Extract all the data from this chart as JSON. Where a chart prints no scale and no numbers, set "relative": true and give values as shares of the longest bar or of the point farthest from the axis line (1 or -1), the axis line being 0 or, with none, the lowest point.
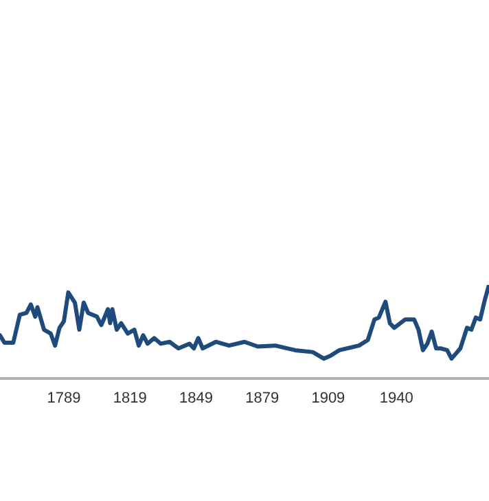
{
  "chart_data": {
    "type": "line",
    "relative": true,
    "x": [
      1760,
      1762,
      1766,
      1769,
      1772,
      1774,
      1776,
      1777,
      1780,
      1783,
      1785,
      1787,
      1789,
      1791,
      1794,
      1796,
      1798,
      1800,
      1804,
      1806,
      1809,
      1810,
      1811,
      1813,
      1815,
      1818,
      1821,
      1823,
      1825,
      1827,
      1830,
      1833,
      1837,
      1841,
      1846,
      1848,
      1850,
      1852,
      1858,
      1864,
      1871,
      1877,
      1885,
      1894,
      1902,
      1907,
      1910,
      1914,
      1923,
      1927,
      1930,
      1932,
      1935,
      1937,
      1939,
      1944,
      1948,
      1950,
      1952,
      1954,
      1956,
      1958,
      1960,
      1963,
      1965,
      1969,
      1972,
      1974,
      1976,
      1978,
      1980,
      1982
    ],
    "series": [
      {
        "color": "#1f4a7c",
        "values": [
          0.46,
          0.38,
          0.38,
          0.68,
          0.7,
          0.79,
          0.66,
          0.76,
          0.52,
          0.48,
          0.35,
          0.54,
          0.61,
          0.92,
          0.81,
          0.52,
          0.81,
          0.7,
          0.66,
          0.57,
          0.74,
          0.59,
          0.74,
          0.52,
          0.59,
          0.48,
          0.52,
          0.35,
          0.46,
          0.37,
          0.43,
          0.37,
          0.39,
          0.32,
          0.37,
          0.32,
          0.43,
          0.32,
          0.39,
          0.35,
          0.39,
          0.34,
          0.35,
          0.3,
          0.28,
          0.21,
          0.24,
          0.3,
          0.35,
          0.41,
          0.63,
          0.65,
          0.82,
          0.59,
          0.54,
          0.63,
          0.63,
          0.52,
          0.3,
          0.37,
          0.5,
          0.32,
          0.32,
          0.3,
          0.21,
          0.32,
          0.54,
          0.52,
          0.65,
          0.63,
          0.83,
          1
        ]
      }
    ],
    "xlim": [
      1760,
      1982
    ],
    "xticks": [
      1789,
      1819,
      1849,
      1879,
      1909,
      1940
    ],
    "grid": false,
    "legend": false,
    "marker": "none",
    "line_style": "solid"
  }
}
